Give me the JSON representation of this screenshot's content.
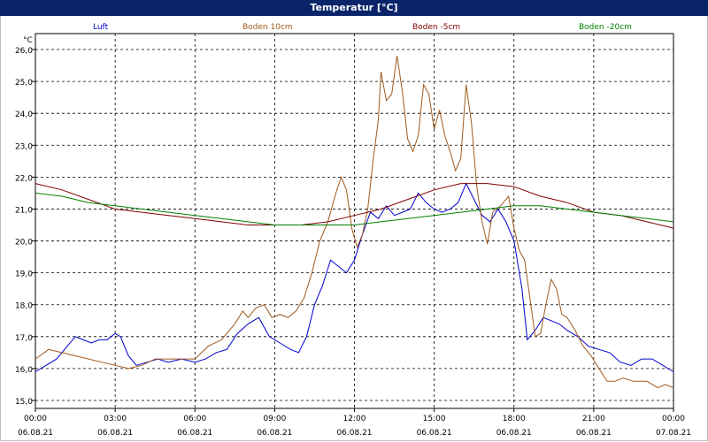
{
  "window": {
    "title": "Temperatur [°C]"
  },
  "chart_data": {
    "type": "line",
    "title": "Temperatur [°C]",
    "ylabel": "°C",
    "ylim": [
      15.0,
      26.0
    ],
    "y_ticks": [
      "15,0",
      "16,0",
      "17,0",
      "18,0",
      "19,0",
      "20,0",
      "21,0",
      "22,0",
      "23,0",
      "24,0",
      "25,0",
      "26,0"
    ],
    "x_ticks": [
      {
        "time": "00:00",
        "date": "06.08.21"
      },
      {
        "time": "03:00",
        "date": "06.08.21"
      },
      {
        "time": "06:00",
        "date": "06.08.21"
      },
      {
        "time": "09:00",
        "date": "06.08.21"
      },
      {
        "time": "12:00",
        "date": "06.08.21"
      },
      {
        "time": "15:00",
        "date": "06.08.21"
      },
      {
        "time": "18:00",
        "date": "06.08.21"
      },
      {
        "time": "21:00",
        "date": "06.08.21"
      },
      {
        "time": "00:00",
        "date": "07.08.21"
      }
    ],
    "grid": true,
    "legend_position": "top",
    "series": [
      {
        "name": "Luft",
        "color": "#0000cc",
        "points": [
          [
            0,
            15.9
          ],
          [
            0.4,
            16.1
          ],
          [
            0.8,
            16.3
          ],
          [
            1.2,
            16.7
          ],
          [
            1.5,
            17.0
          ],
          [
            1.8,
            16.9
          ],
          [
            2.1,
            16.8
          ],
          [
            2.4,
            16.9
          ],
          [
            2.7,
            16.9
          ],
          [
            3.0,
            17.1
          ],
          [
            3.2,
            17.0
          ],
          [
            3.5,
            16.4
          ],
          [
            3.8,
            16.1
          ],
          [
            4.2,
            16.2
          ],
          [
            4.6,
            16.3
          ],
          [
            5.0,
            16.2
          ],
          [
            5.5,
            16.3
          ],
          [
            6.0,
            16.2
          ],
          [
            6.4,
            16.3
          ],
          [
            6.8,
            16.5
          ],
          [
            7.2,
            16.6
          ],
          [
            7.6,
            17.1
          ],
          [
            8.0,
            17.4
          ],
          [
            8.4,
            17.6
          ],
          [
            8.8,
            17.0
          ],
          [
            9.2,
            16.8
          ],
          [
            9.6,
            16.6
          ],
          [
            9.9,
            16.5
          ],
          [
            10.2,
            17.0
          ],
          [
            10.5,
            18.0
          ],
          [
            10.8,
            18.6
          ],
          [
            11.1,
            19.4
          ],
          [
            11.4,
            19.2
          ],
          [
            11.7,
            19.0
          ],
          [
            12.0,
            19.4
          ],
          [
            12.3,
            20.2
          ],
          [
            12.6,
            20.9
          ],
          [
            12.9,
            20.7
          ],
          [
            13.2,
            21.1
          ],
          [
            13.5,
            20.8
          ],
          [
            13.8,
            20.9
          ],
          [
            14.1,
            21.0
          ],
          [
            14.4,
            21.5
          ],
          [
            14.7,
            21.2
          ],
          [
            15.0,
            21.0
          ],
          [
            15.3,
            20.9
          ],
          [
            15.6,
            21.0
          ],
          [
            15.9,
            21.2
          ],
          [
            16.2,
            21.8
          ],
          [
            16.5,
            21.3
          ],
          [
            16.8,
            20.8
          ],
          [
            17.1,
            20.6
          ],
          [
            17.4,
            21.0
          ],
          [
            17.7,
            20.6
          ],
          [
            18.0,
            20.0
          ],
          [
            18.3,
            18.5
          ],
          [
            18.5,
            16.9
          ],
          [
            18.8,
            17.2
          ],
          [
            19.1,
            17.6
          ],
          [
            19.4,
            17.5
          ],
          [
            19.7,
            17.4
          ],
          [
            20.0,
            17.2
          ],
          [
            20.4,
            17.0
          ],
          [
            20.8,
            16.7
          ],
          [
            21.2,
            16.6
          ],
          [
            21.6,
            16.5
          ],
          [
            22.0,
            16.2
          ],
          [
            22.4,
            16.1
          ],
          [
            22.8,
            16.3
          ],
          [
            23.2,
            16.3
          ],
          [
            23.6,
            16.1
          ],
          [
            24.0,
            15.9
          ]
        ]
      },
      {
        "name": "Boden 10cm",
        "color": "#a05a1e",
        "points": [
          [
            0,
            16.3
          ],
          [
            0.5,
            16.6
          ],
          [
            1.0,
            16.5
          ],
          [
            1.5,
            16.4
          ],
          [
            2.0,
            16.3
          ],
          [
            2.5,
            16.2
          ],
          [
            3.0,
            16.1
          ],
          [
            3.5,
            16.0
          ],
          [
            4.0,
            16.1
          ],
          [
            4.5,
            16.3
          ],
          [
            5.0,
            16.3
          ],
          [
            5.5,
            16.3
          ],
          [
            6.0,
            16.3
          ],
          [
            6.5,
            16.7
          ],
          [
            7.0,
            16.9
          ],
          [
            7.5,
            17.4
          ],
          [
            7.8,
            17.8
          ],
          [
            8.0,
            17.6
          ],
          [
            8.3,
            17.9
          ],
          [
            8.6,
            18.0
          ],
          [
            8.9,
            17.6
          ],
          [
            9.2,
            17.7
          ],
          [
            9.5,
            17.6
          ],
          [
            9.8,
            17.8
          ],
          [
            10.1,
            18.2
          ],
          [
            10.4,
            19.0
          ],
          [
            10.7,
            20.0
          ],
          [
            11.0,
            20.6
          ],
          [
            11.3,
            21.5
          ],
          [
            11.5,
            22.0
          ],
          [
            11.7,
            21.6
          ],
          [
            11.9,
            20.4
          ],
          [
            12.1,
            19.8
          ],
          [
            12.3,
            20.2
          ],
          [
            12.5,
            21.0
          ],
          [
            12.7,
            22.5
          ],
          [
            12.9,
            23.8
          ],
          [
            13.0,
            25.3
          ],
          [
            13.2,
            24.4
          ],
          [
            13.4,
            24.6
          ],
          [
            13.6,
            25.8
          ],
          [
            13.8,
            24.7
          ],
          [
            14.0,
            23.2
          ],
          [
            14.2,
            22.8
          ],
          [
            14.4,
            23.3
          ],
          [
            14.6,
            24.9
          ],
          [
            14.8,
            24.6
          ],
          [
            15.0,
            23.5
          ],
          [
            15.2,
            24.1
          ],
          [
            15.4,
            23.3
          ],
          [
            15.6,
            22.8
          ],
          [
            15.8,
            22.2
          ],
          [
            16.0,
            22.6
          ],
          [
            16.2,
            24.9
          ],
          [
            16.4,
            23.7
          ],
          [
            16.6,
            21.7
          ],
          [
            16.8,
            20.6
          ],
          [
            17.0,
            19.9
          ],
          [
            17.2,
            20.9
          ],
          [
            17.5,
            21.1
          ],
          [
            17.8,
            21.4
          ],
          [
            18.0,
            20.4
          ],
          [
            18.2,
            19.7
          ],
          [
            18.4,
            19.4
          ],
          [
            18.6,
            18.2
          ],
          [
            18.8,
            17.0
          ],
          [
            19.0,
            17.1
          ],
          [
            19.2,
            18.0
          ],
          [
            19.4,
            18.8
          ],
          [
            19.6,
            18.5
          ],
          [
            19.8,
            17.7
          ],
          [
            20.0,
            17.6
          ],
          [
            20.3,
            17.2
          ],
          [
            20.6,
            16.7
          ],
          [
            20.9,
            16.4
          ],
          [
            21.2,
            16.0
          ],
          [
            21.5,
            15.6
          ],
          [
            21.8,
            15.6
          ],
          [
            22.1,
            15.7
          ],
          [
            22.5,
            15.6
          ],
          [
            23.0,
            15.6
          ],
          [
            23.4,
            15.4
          ],
          [
            23.7,
            15.5
          ],
          [
            24.0,
            15.4
          ]
        ]
      },
      {
        "name": "Boden -5cm",
        "color": "#800000",
        "points": [
          [
            0,
            21.8
          ],
          [
            1.0,
            21.6
          ],
          [
            2.0,
            21.3
          ],
          [
            3.0,
            21.0
          ],
          [
            4.0,
            20.9
          ],
          [
            5.0,
            20.8
          ],
          [
            6.0,
            20.7
          ],
          [
            7.0,
            20.6
          ],
          [
            8.0,
            20.5
          ],
          [
            9.0,
            20.5
          ],
          [
            10.0,
            20.5
          ],
          [
            11.0,
            20.6
          ],
          [
            12.0,
            20.8
          ],
          [
            13.0,
            21.0
          ],
          [
            14.0,
            21.3
          ],
          [
            15.0,
            21.6
          ],
          [
            16.0,
            21.8
          ],
          [
            17.0,
            21.8
          ],
          [
            18.0,
            21.7
          ],
          [
            19.0,
            21.4
          ],
          [
            20.0,
            21.2
          ],
          [
            21.0,
            20.9
          ],
          [
            22.0,
            20.8
          ],
          [
            23.0,
            20.6
          ],
          [
            24.0,
            20.4
          ]
        ]
      },
      {
        "name": "Boden -20cm",
        "color": "#008000",
        "points": [
          [
            0,
            21.5
          ],
          [
            1.0,
            21.4
          ],
          [
            2.0,
            21.2
          ],
          [
            3.0,
            21.1
          ],
          [
            4.0,
            21.0
          ],
          [
            5.0,
            20.9
          ],
          [
            6.0,
            20.8
          ],
          [
            7.0,
            20.7
          ],
          [
            8.0,
            20.6
          ],
          [
            9.0,
            20.5
          ],
          [
            10.0,
            20.5
          ],
          [
            11.0,
            20.5
          ],
          [
            12.0,
            20.5
          ],
          [
            13.0,
            20.6
          ],
          [
            14.0,
            20.7
          ],
          [
            15.0,
            20.8
          ],
          [
            16.0,
            20.9
          ],
          [
            17.0,
            21.0
          ],
          [
            18.0,
            21.1
          ],
          [
            19.0,
            21.1
          ],
          [
            20.0,
            21.0
          ],
          [
            21.0,
            20.9
          ],
          [
            22.0,
            20.8
          ],
          [
            23.0,
            20.7
          ],
          [
            24.0,
            20.6
          ]
        ]
      }
    ]
  }
}
